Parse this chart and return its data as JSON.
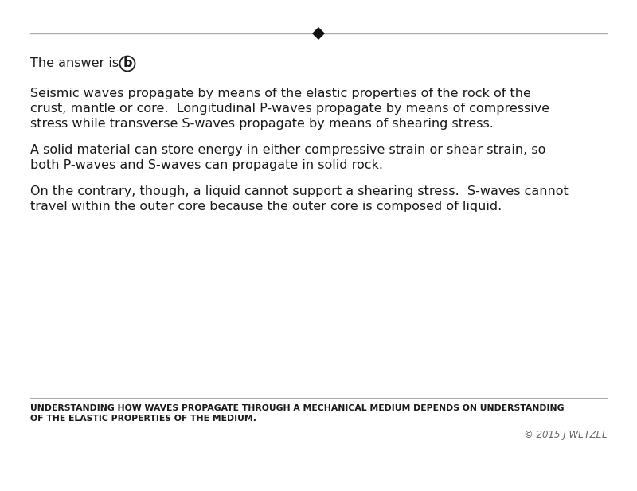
{
  "bg_color": "#ffffff",
  "text_color": "#1a1a1a",
  "gray_line_color": "#aaaaaa",
  "answer_label": "The answer is ",
  "answer_letter": "b",
  "paragraph1_line1": "Seismic waves propagate by means of the elastic properties of the rock of the",
  "paragraph1_line2": "crust, mantle or core.  Longitudinal P-waves propagate by means of compressive",
  "paragraph1_line3": "stress while transverse S-waves propagate by means of shearing stress.",
  "paragraph2_line1": "A solid material can store energy in either compressive strain or shear strain, so",
  "paragraph2_line2": "both P-waves and S-waves can propagate in solid rock.",
  "paragraph3_line1": "On the contrary, though, a liquid cannot support a shearing stress.  S-waves cannot",
  "paragraph3_line2": "travel within the outer core because the outer core is composed of liquid.",
  "footer_line1": "UNDERSTANDING HOW WAVES PROPAGATE THROUGH A MECHANICAL MEDIUM DEPENDS ON UNDERSTANDING",
  "footer_line2": "OF THE ELASTIC PROPERTIES OF THE MEDIUM.",
  "copyright": "© 2015 J WETZEL",
  "main_fontsize": 11.5,
  "footer_fontsize": 7.8,
  "copyright_fontsize": 8.5,
  "answer_fontsize": 11.5
}
